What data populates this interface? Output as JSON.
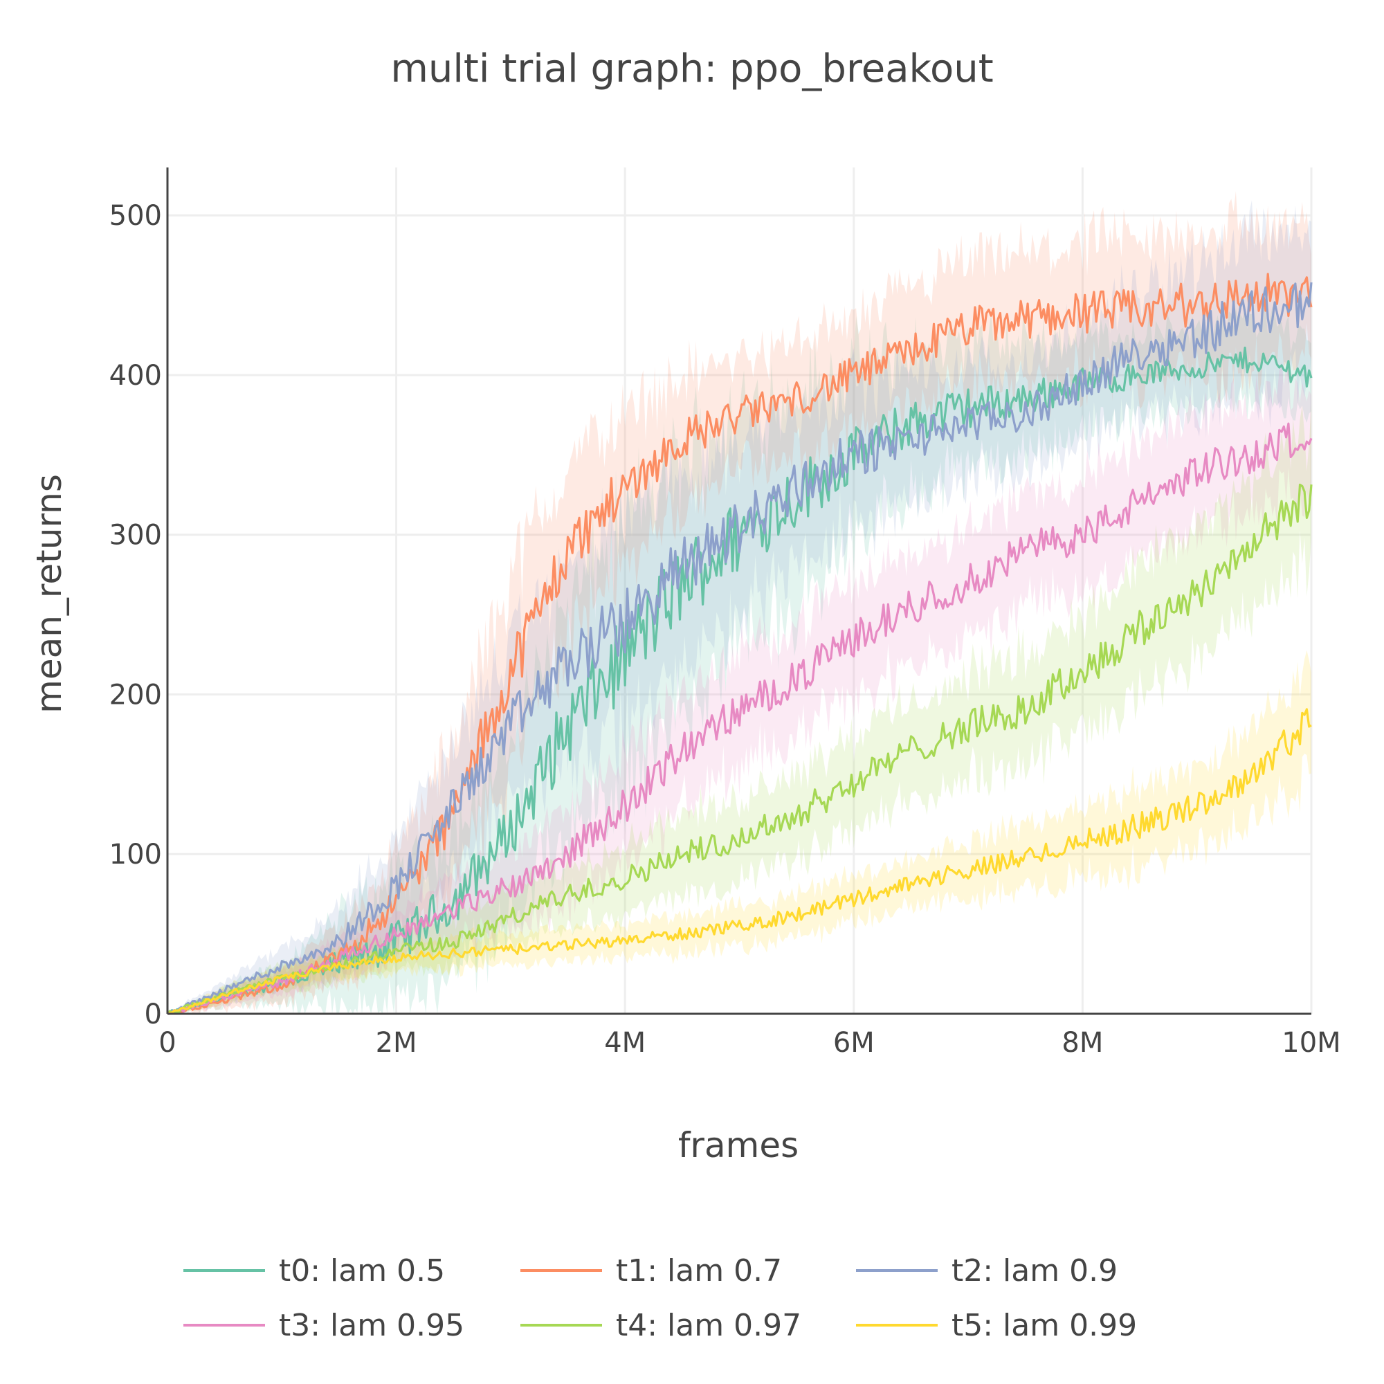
{
  "chart_data": {
    "type": "line",
    "title": "multi trial graph: ppo_breakout",
    "xlabel": "frames",
    "ylabel": "mean_returns",
    "xlim": [
      0,
      10000000
    ],
    "ylim": [
      0,
      530
    ],
    "x_ticks": [
      {
        "value": 0,
        "label": "0"
      },
      {
        "value": 2000000,
        "label": "2M"
      },
      {
        "value": 4000000,
        "label": "4M"
      },
      {
        "value": 6000000,
        "label": "6M"
      },
      {
        "value": 8000000,
        "label": "8M"
      },
      {
        "value": 10000000,
        "label": "10M"
      }
    ],
    "y_ticks": [
      {
        "value": 0,
        "label": "0"
      },
      {
        "value": 100,
        "label": "100"
      },
      {
        "value": 200,
        "label": "200"
      },
      {
        "value": 300,
        "label": "300"
      },
      {
        "value": 400,
        "label": "400"
      },
      {
        "value": 500,
        "label": "500"
      }
    ],
    "grid": true,
    "legend_position": "bottom",
    "x": [
      0,
      500000,
      1000000,
      1500000,
      2000000,
      2500000,
      3000000,
      3500000,
      4000000,
      4500000,
      5000000,
      5500000,
      6000000,
      6500000,
      7000000,
      7500000,
      8000000,
      8500000,
      9000000,
      9500000,
      10000000
    ],
    "series": [
      {
        "name": "t0: lam 0.5",
        "color": "#66c2a5",
        "values": [
          0,
          10,
          20,
          30,
          45,
          70,
          115,
          180,
          225,
          270,
          300,
          325,
          350,
          370,
          380,
          385,
          395,
          400,
          405,
          410,
          400
        ],
        "band": [
          0,
          6,
          12,
          30,
          40,
          45,
          55,
          75,
          80,
          80,
          75,
          65,
          55,
          45,
          40,
          35,
          30,
          25,
          25,
          25,
          25
        ]
      },
      {
        "name": "t1: lam 0.7",
        "color": "#fc8d62",
        "values": [
          0,
          8,
          18,
          35,
          70,
          125,
          215,
          290,
          330,
          360,
          375,
          385,
          400,
          415,
          430,
          435,
          440,
          440,
          445,
          450,
          450
        ],
        "band": [
          0,
          5,
          10,
          18,
          30,
          45,
          60,
          55,
          45,
          40,
          35,
          35,
          35,
          38,
          40,
          40,
          42,
          42,
          45,
          45,
          40
        ]
      },
      {
        "name": "t2: lam 0.9",
        "color": "#8da0cb",
        "values": [
          0,
          15,
          30,
          45,
          80,
          130,
          180,
          220,
          245,
          280,
          305,
          330,
          350,
          360,
          370,
          375,
          395,
          415,
          425,
          440,
          445
        ],
        "band": [
          0,
          6,
          12,
          20,
          30,
          40,
          50,
          60,
          65,
          60,
          55,
          50,
          45,
          40,
          35,
          35,
          35,
          40,
          45,
          50,
          45
        ]
      },
      {
        "name": "t3: lam 0.95",
        "color": "#e78ac3",
        "values": [
          0,
          10,
          20,
          35,
          50,
          65,
          80,
          100,
          130,
          165,
          190,
          210,
          235,
          255,
          270,
          290,
          300,
          320,
          340,
          350,
          365
        ],
        "band": [
          0,
          5,
          8,
          12,
          15,
          20,
          25,
          30,
          35,
          35,
          35,
          35,
          35,
          35,
          35,
          35,
          35,
          35,
          35,
          35,
          35
        ]
      },
      {
        "name": "t4: lam 0.97",
        "color": "#a6d854",
        "values": [
          0,
          12,
          22,
          30,
          40,
          45,
          60,
          75,
          85,
          100,
          110,
          125,
          145,
          165,
          180,
          190,
          215,
          240,
          265,
          295,
          325
        ],
        "band": [
          0,
          5,
          8,
          10,
          12,
          15,
          18,
          20,
          22,
          25,
          25,
          28,
          30,
          30,
          32,
          35,
          35,
          40,
          40,
          40,
          40
        ]
      },
      {
        "name": "t5: lam 0.99",
        "color": "#ffd92f",
        "values": [
          0,
          12,
          22,
          30,
          35,
          38,
          40,
          43,
          46,
          50,
          55,
          62,
          72,
          82,
          90,
          98,
          108,
          118,
          130,
          150,
          185
        ],
        "band": [
          0,
          5,
          6,
          8,
          8,
          10,
          10,
          10,
          10,
          12,
          12,
          14,
          15,
          15,
          18,
          20,
          22,
          25,
          25,
          28,
          35
        ]
      }
    ]
  }
}
